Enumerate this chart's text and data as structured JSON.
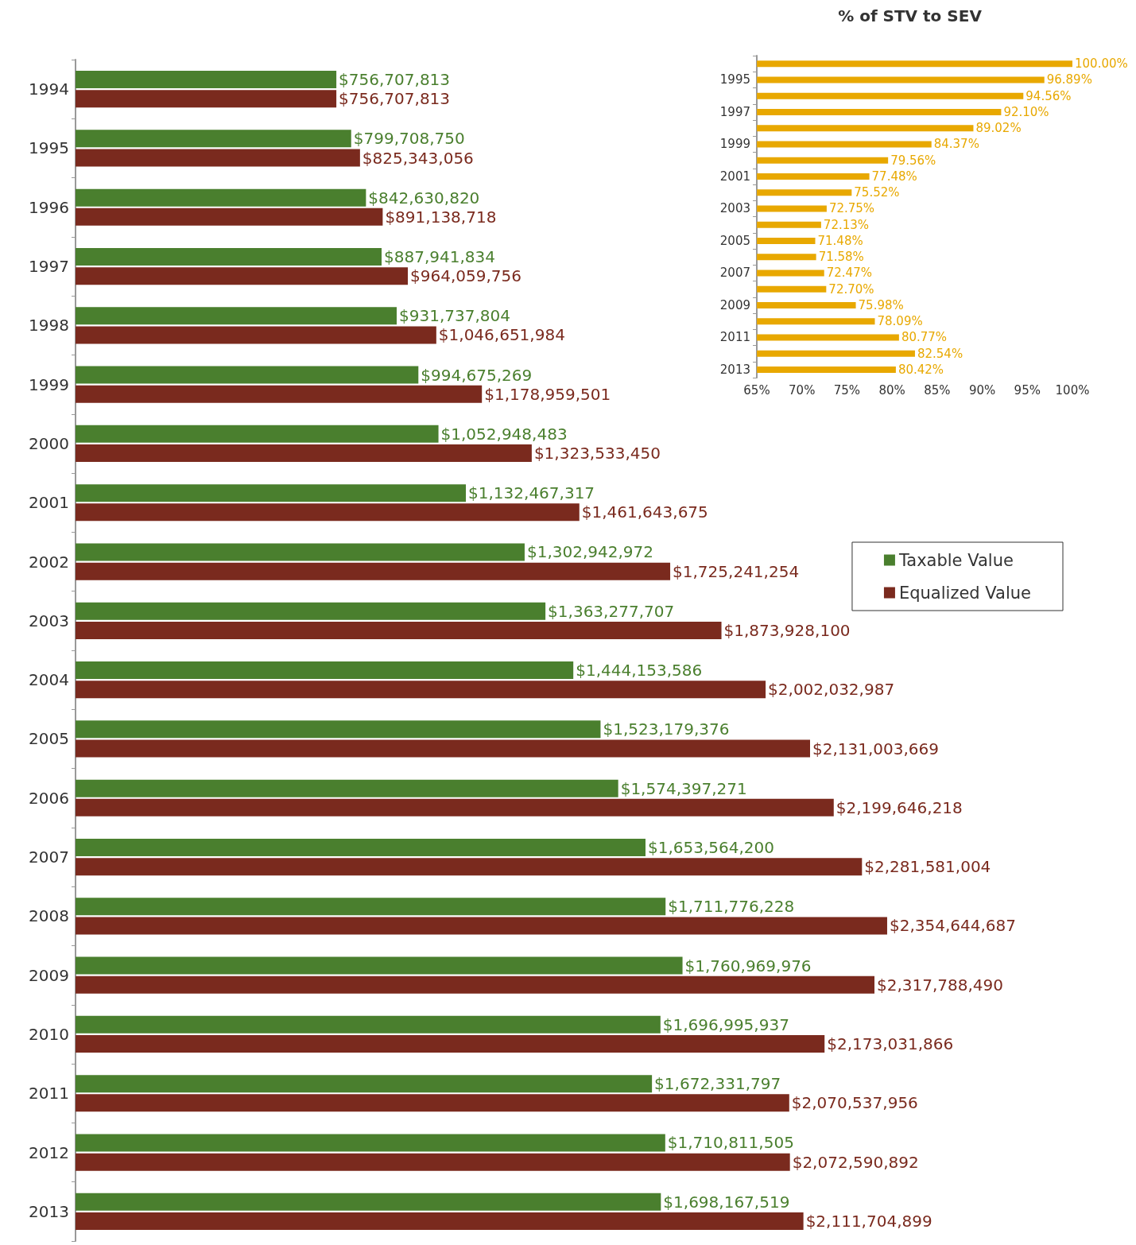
{
  "chart_data": [
    {
      "type": "bar",
      "orientation": "horizontal",
      "legend": "right",
      "categories": [
        "1994",
        "1995",
        "1996",
        "1997",
        "1998",
        "1999",
        "2000",
        "2001",
        "2002",
        "2003",
        "2004",
        "2005",
        "2006",
        "2007",
        "2008",
        "2009",
        "2010",
        "2011",
        "2012",
        "2013"
      ],
      "series": [
        {
          "name": "Taxable Value",
          "color": "#4a7f2e",
          "values": [
            756707813,
            799708750,
            842630820,
            887941834,
            931737804,
            994675269,
            1052948483,
            1132467317,
            1302942972,
            1363277707,
            1444153586,
            1523179376,
            1574397271,
            1653564200,
            1711776228,
            1760969976,
            1696995937,
            1672331797,
            1710811505,
            1698167519
          ],
          "value_labels": [
            "$756,707,813",
            "$799,708,750",
            "$842,630,820",
            "$887,941,834",
            "$931,737,804",
            "$994,675,269",
            "$1,052,948,483",
            "$1,132,467,317",
            "$1,302,942,972",
            "$1,363,277,707",
            "$1,444,153,586",
            "$1,523,179,376",
            "$1,574,397,271",
            "$1,653,564,200",
            "$1,711,776,228",
            "$1,760,969,976",
            "$1,696,995,937",
            "$1,672,331,797",
            "$1,710,811,505",
            "$1,698,167,519"
          ]
        },
        {
          "name": "Equalized Value",
          "color": "#7a2a1e",
          "values": [
            756707813,
            825343056,
            891138718,
            964059756,
            1046651984,
            1178959501,
            1323533450,
            1461643675,
            1725241254,
            1873928100,
            2002032987,
            2131003669,
            2199646218,
            2281581004,
            2354644687,
            2317788490,
            2173031866,
            2070537956,
            2072590892,
            2111704899
          ],
          "value_labels": [
            "$756,707,813",
            "$825,343,056",
            "$891,138,718",
            "$964,059,756",
            "$1,046,651,984",
            "$1,178,959,501",
            "$1,323,533,450",
            "$1,461,643,675",
            "$1,725,241,254",
            "$1,873,928,100",
            "$2,002,032,987",
            "$2,131,003,669",
            "$2,199,646,218",
            "$2,281,581,004",
            "$2,354,644,687",
            "$2,317,788,490",
            "$2,173,031,866",
            "$2,070,537,956",
            "$2,072,590,892",
            "$2,111,704,899"
          ]
        }
      ]
    },
    {
      "type": "bar",
      "orientation": "horizontal",
      "title": "% of STV to SEV",
      "categories": [
        null,
        "1995",
        null,
        "1997",
        null,
        "1999",
        null,
        "2001",
        null,
        "2003",
        null,
        "2005",
        null,
        "2007",
        null,
        "2009",
        null,
        "2011",
        null,
        "2013"
      ],
      "xlim": [
        65,
        100
      ],
      "xticks": [
        {
          "value": 65,
          "label": "65%"
        },
        {
          "value": 70,
          "label": "70%"
        },
        {
          "value": 75,
          "label": "75%"
        },
        {
          "value": 80,
          "label": "80%"
        },
        {
          "value": 85,
          "label": "85%"
        },
        {
          "value": 90,
          "label": "90%"
        },
        {
          "value": 95,
          "label": "95%"
        },
        {
          "value": 100,
          "label": "100%"
        }
      ],
      "series": [
        {
          "color": "#e8a800",
          "values": [
            100.0,
            96.89,
            94.56,
            92.1,
            89.02,
            84.37,
            79.56,
            77.48,
            75.52,
            72.75,
            72.13,
            71.48,
            71.58,
            72.47,
            72.7,
            75.98,
            78.09,
            80.77,
            82.54,
            80.42
          ],
          "value_labels": [
            "100.00%",
            "96.89%",
            "94.56%",
            "92.10%",
            "89.02%",
            "84.37%",
            "79.56%",
            "77.48%",
            "75.52%",
            "72.75%",
            "72.13%",
            "71.48%",
            "71.58%",
            "72.47%",
            "72.70%",
            "75.98%",
            "78.09%",
            "80.77%",
            "82.54%",
            "80.42%"
          ]
        }
      ]
    }
  ]
}
